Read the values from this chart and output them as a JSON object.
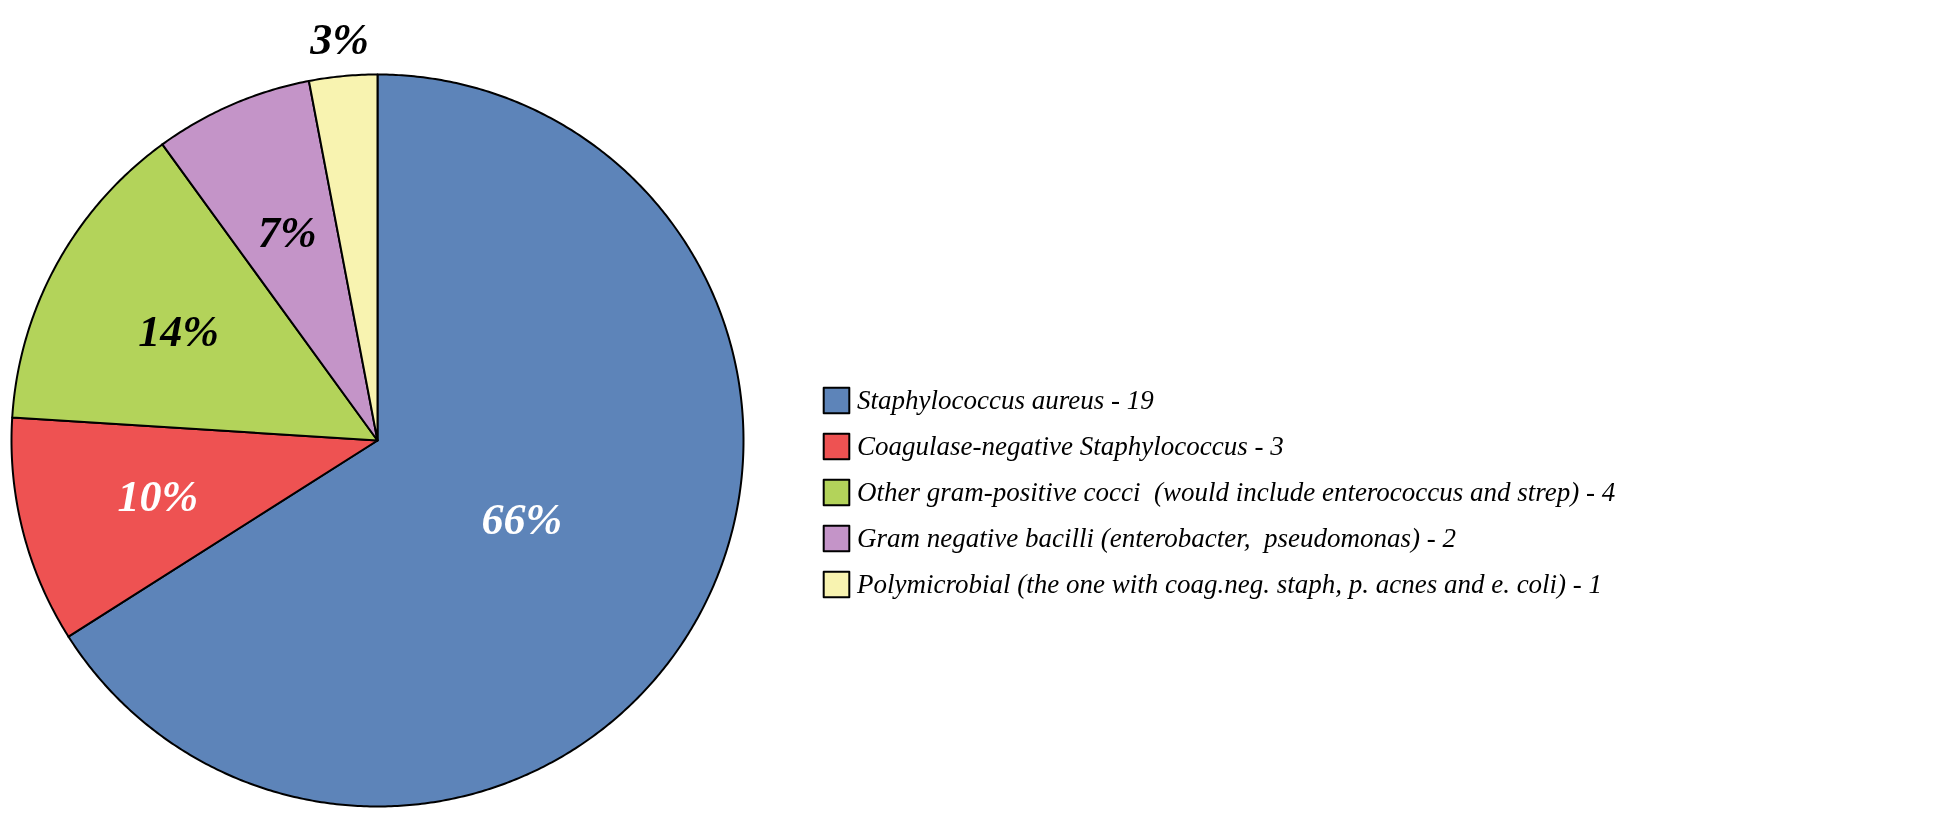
{
  "chart_data": {
    "type": "pie",
    "categories": [
      "Staphylococcus aureus - 19",
      "Coagulase-negative Staphylococcus - 3",
      "Other gram-positive cocci  (would include enterococcus and strep) - 4",
      "Gram negative bacilli (enterobacter,  pseudomonas) - 2",
      "Polymicrobial (the one with coag.neg. staph, p. acnes and e. coli) - 1"
    ],
    "values": [
      66,
      10,
      14,
      7,
      3
    ],
    "colors": [
      "#5d84b9",
      "#ee5252",
      "#b3d35a",
      "#c494c8",
      "#f8f3b0"
    ],
    "value_labels": [
      "66%",
      "10%",
      "14%",
      "7%",
      "3%"
    ],
    "legend": "right"
  }
}
